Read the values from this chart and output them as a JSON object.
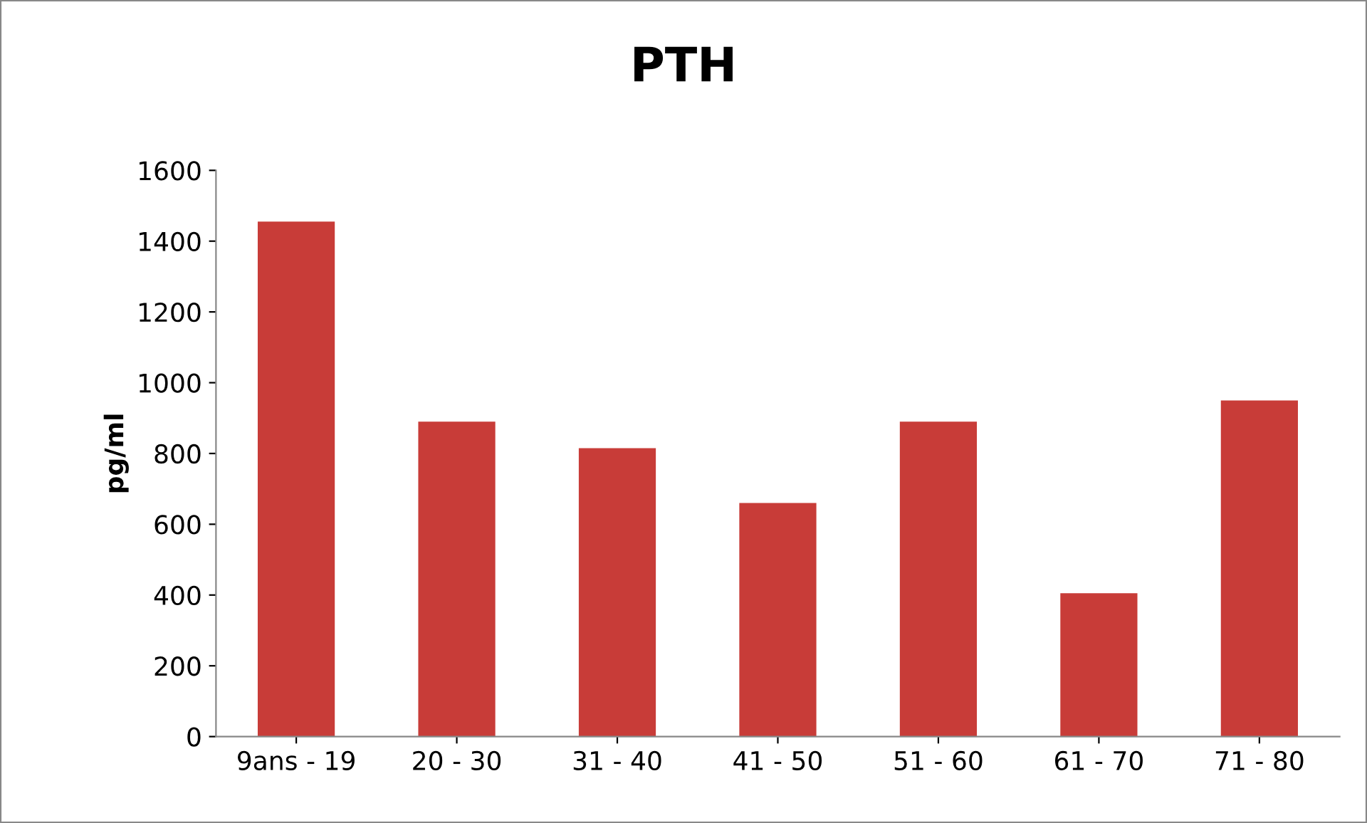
{
  "chart_data": {
    "type": "bar",
    "title": "PTH",
    "ylabel": "pg/ml",
    "categories": [
      "9ans - 19",
      "20 - 30",
      "31 - 40",
      "41 - 50",
      "51 - 60",
      "61 - 70",
      "71 - 80"
    ],
    "values": [
      1455,
      890,
      815,
      660,
      890,
      405,
      950
    ],
    "color": "#c83c38",
    "ylim": [
      0,
      1600
    ],
    "yticks": [
      0,
      200,
      400,
      600,
      800,
      1000,
      1200,
      1400,
      1600
    ],
    "grid": false,
    "legend": false
  }
}
